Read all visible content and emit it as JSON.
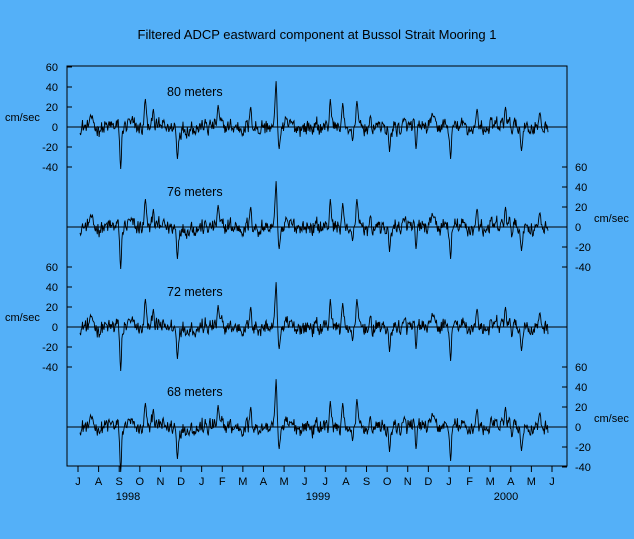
{
  "chart_data": {
    "type": "line",
    "title": "Filtered ADCP eastward component at Bussol Strait Mooring 1",
    "ylabel": "cm/sec",
    "ylim": [
      -40,
      60
    ],
    "yticks": [
      "60",
      "40",
      "20",
      "0",
      "-20",
      "-40"
    ],
    "x_months": [
      "J",
      "A",
      "S",
      "O",
      "N",
      "D",
      "J",
      "F",
      "M",
      "A",
      "M",
      "J",
      "J",
      "A",
      "S",
      "O",
      "N",
      "D",
      "J",
      "F",
      "M",
      "A",
      "M",
      "J"
    ],
    "x_years": [
      "1998",
      "1999",
      "2000"
    ],
    "axis_sides": [
      "left",
      "right",
      "left",
      "right"
    ],
    "series": [
      {
        "name": "80 meters",
        "label": "80 meters",
        "peaks": [
          [
            0.5,
            12
          ],
          [
            2.0,
            -42
          ],
          [
            2.4,
            8
          ],
          [
            3.2,
            28
          ],
          [
            3.6,
            18
          ],
          [
            4.8,
            -32
          ],
          [
            6.8,
            22
          ],
          [
            8.4,
            20
          ],
          [
            9.65,
            46
          ],
          [
            9.8,
            -22
          ],
          [
            12.3,
            28
          ],
          [
            12.9,
            24
          ],
          [
            13.4,
            -14
          ],
          [
            13.6,
            26
          ],
          [
            15.2,
            -25
          ],
          [
            16.5,
            -22
          ],
          [
            17.3,
            14
          ],
          [
            18.2,
            -32
          ],
          [
            19.5,
            18
          ],
          [
            20.9,
            20
          ],
          [
            21.7,
            -24
          ],
          [
            22.6,
            14
          ]
        ]
      },
      {
        "name": "76 meters",
        "label": "76 meters",
        "peaks": [
          [
            0.5,
            12
          ],
          [
            2.0,
            -42
          ],
          [
            2.4,
            8
          ],
          [
            3.2,
            28
          ],
          [
            3.6,
            18
          ],
          [
            4.8,
            -32
          ],
          [
            6.8,
            22
          ],
          [
            8.4,
            20
          ],
          [
            9.65,
            46
          ],
          [
            9.8,
            -22
          ],
          [
            12.3,
            28
          ],
          [
            12.9,
            24
          ],
          [
            13.4,
            -14
          ],
          [
            13.6,
            28
          ],
          [
            15.2,
            -25
          ],
          [
            16.5,
            -22
          ],
          [
            17.3,
            14
          ],
          [
            18.2,
            -32
          ],
          [
            19.5,
            18
          ],
          [
            20.9,
            20
          ],
          [
            21.7,
            -24
          ],
          [
            22.6,
            14
          ]
        ]
      },
      {
        "name": "72 meters",
        "label": "72 meters",
        "peaks": [
          [
            0.5,
            12
          ],
          [
            2.0,
            -44
          ],
          [
            2.4,
            8
          ],
          [
            3.2,
            28
          ],
          [
            3.6,
            18
          ],
          [
            4.8,
            -32
          ],
          [
            6.8,
            22
          ],
          [
            8.4,
            20
          ],
          [
            9.65,
            45
          ],
          [
            9.8,
            -22
          ],
          [
            12.3,
            28
          ],
          [
            12.9,
            24
          ],
          [
            13.4,
            -14
          ],
          [
            13.6,
            28
          ],
          [
            15.2,
            -25
          ],
          [
            16.5,
            -22
          ],
          [
            17.3,
            14
          ],
          [
            18.2,
            -34
          ],
          [
            19.5,
            18
          ],
          [
            20.9,
            20
          ],
          [
            21.7,
            -24
          ],
          [
            22.6,
            14
          ]
        ]
      },
      {
        "name": "68 meters",
        "label": "68 meters",
        "peaks": [
          [
            0.5,
            12
          ],
          [
            2.0,
            -45
          ],
          [
            2.4,
            8
          ],
          [
            3.2,
            24
          ],
          [
            3.6,
            18
          ],
          [
            4.8,
            -32
          ],
          [
            6.8,
            22
          ],
          [
            8.4,
            20
          ],
          [
            9.65,
            48
          ],
          [
            9.8,
            -22
          ],
          [
            12.3,
            26
          ],
          [
            12.9,
            24
          ],
          [
            13.4,
            -14
          ],
          [
            13.6,
            28
          ],
          [
            15.2,
            -25
          ],
          [
            16.5,
            -22
          ],
          [
            17.3,
            14
          ],
          [
            18.2,
            -34
          ],
          [
            19.5,
            18
          ],
          [
            20.9,
            20
          ],
          [
            21.7,
            -24
          ],
          [
            22.6,
            14
          ]
        ]
      }
    ]
  }
}
